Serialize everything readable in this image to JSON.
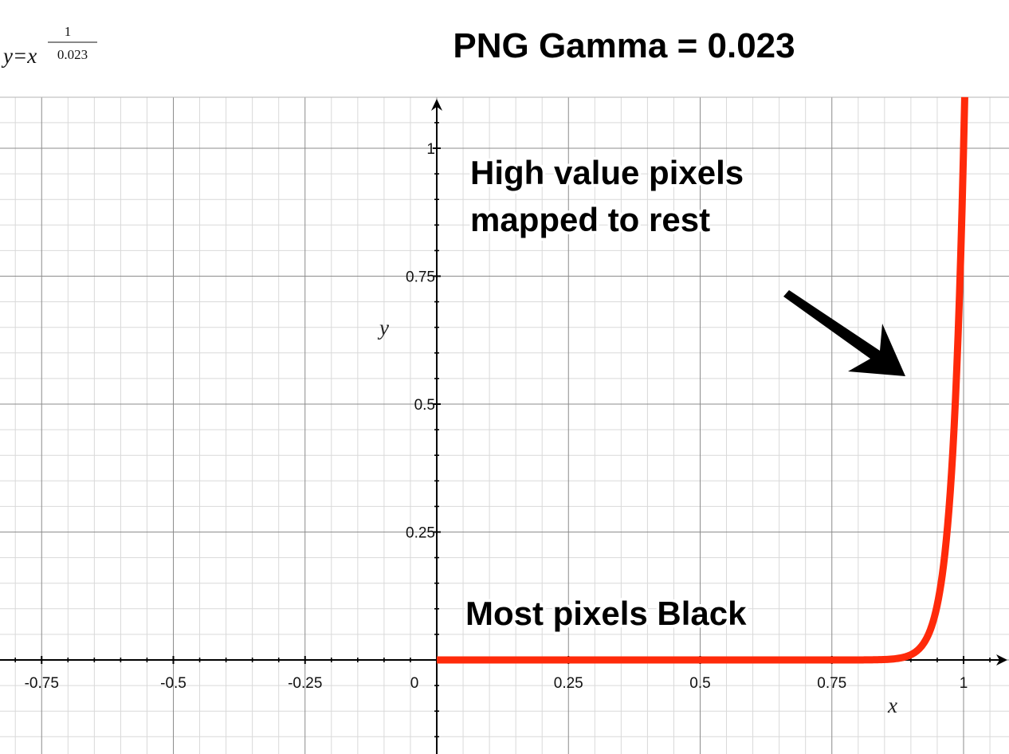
{
  "formula": {
    "lhs": "y=x",
    "numerator": "1",
    "denominator": "0.023"
  },
  "title": "PNG Gamma = 0.023",
  "annotations": {
    "high": [
      "High value pixels",
      "mapped to rest"
    ],
    "low": "Most pixels Black"
  },
  "colors": {
    "curve": "#ff2a0a",
    "grid_minor": "#d9d9d9",
    "grid_major": "#8c8c8c",
    "axis": "#000000",
    "arrow": "#000000"
  },
  "chart_data": {
    "type": "line",
    "function": "y = x^(1/0.023)",
    "gamma": 0.023,
    "xlabel": "x",
    "ylabel": "y",
    "xlim": [
      -0.83,
      1.12
    ],
    "ylim": [
      -0.18,
      1.1
    ],
    "x_ticks": [
      {
        "value": -0.75,
        "label": "-0.75"
      },
      {
        "value": -0.5,
        "label": "-0.5"
      },
      {
        "value": -0.25,
        "label": "-0.25"
      },
      {
        "value": 0,
        "label": "0"
      },
      {
        "value": 0.25,
        "label": "0.25"
      },
      {
        "value": 0.5,
        "label": "0.5"
      },
      {
        "value": 0.75,
        "label": "0.75"
      },
      {
        "value": 1,
        "label": "1"
      }
    ],
    "y_ticks": [
      {
        "value": 0.25,
        "label": "0.25"
      },
      {
        "value": 0.5,
        "label": "0.5"
      },
      {
        "value": 0.75,
        "label": "0.75"
      },
      {
        "value": 1,
        "label": "1"
      }
    ],
    "grid": true,
    "series": [
      {
        "x": [
          0,
          0.25,
          0.5,
          0.75,
          0.85,
          0.9,
          0.93,
          0.95,
          0.97,
          0.98,
          0.99,
          1.0
        ],
        "y": [
          0,
          0,
          0,
          0,
          0.0009,
          0.01,
          0.043,
          0.108,
          0.266,
          0.415,
          0.646,
          1.0
        ]
      }
    ]
  }
}
